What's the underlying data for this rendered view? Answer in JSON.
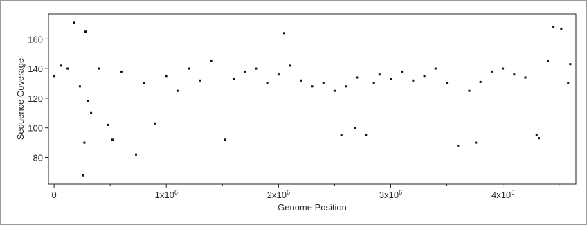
{
  "chart_data": {
    "type": "scatter",
    "title": "",
    "xlabel": "Genome Position",
    "ylabel": "Sequence Coverage",
    "xlim": [
      -50000,
      4650000
    ],
    "ylim": [
      62,
      177
    ],
    "grid": false,
    "x_ticks": [
      {
        "value": 0,
        "mantissa": "0",
        "exp": ""
      },
      {
        "value": 1000000,
        "mantissa": "1x10",
        "exp": "6"
      },
      {
        "value": 2000000,
        "mantissa": "2x10",
        "exp": "6"
      },
      {
        "value": 3000000,
        "mantissa": "3x10",
        "exp": "6"
      },
      {
        "value": 4000000,
        "mantissa": "4x10",
        "exp": "6"
      }
    ],
    "y_ticks": [
      80,
      100,
      120,
      140,
      160
    ],
    "marker_color": "#111111",
    "series": [
      {
        "points": [
          [
            0,
            135
          ],
          [
            60000,
            142
          ],
          [
            120000,
            140
          ],
          [
            180000,
            171
          ],
          [
            230000,
            128
          ],
          [
            260000,
            68
          ],
          [
            270000,
            90
          ],
          [
            280000,
            165
          ],
          [
            300000,
            118
          ],
          [
            330000,
            110
          ],
          [
            400000,
            140
          ],
          [
            480000,
            102
          ],
          [
            520000,
            92
          ],
          [
            600000,
            138
          ],
          [
            730000,
            82
          ],
          [
            800000,
            130
          ],
          [
            900000,
            103
          ],
          [
            1000000,
            135
          ],
          [
            1100000,
            125
          ],
          [
            1200000,
            140
          ],
          [
            1300000,
            132
          ],
          [
            1400000,
            145
          ],
          [
            1520000,
            92
          ],
          [
            1600000,
            133
          ],
          [
            1700000,
            138
          ],
          [
            1800000,
            140
          ],
          [
            1900000,
            130
          ],
          [
            2000000,
            136
          ],
          [
            2050000,
            164
          ],
          [
            2100000,
            142
          ],
          [
            2200000,
            132
          ],
          [
            2300000,
            128
          ],
          [
            2400000,
            130
          ],
          [
            2500000,
            125
          ],
          [
            2560000,
            95
          ],
          [
            2600000,
            128
          ],
          [
            2680000,
            100
          ],
          [
            2700000,
            134
          ],
          [
            2780000,
            95
          ],
          [
            2850000,
            130
          ],
          [
            2900000,
            136
          ],
          [
            3000000,
            133
          ],
          [
            3100000,
            138
          ],
          [
            3200000,
            132
          ],
          [
            3300000,
            135
          ],
          [
            3400000,
            140
          ],
          [
            3500000,
            130
          ],
          [
            3600000,
            88
          ],
          [
            3700000,
            125
          ],
          [
            3760000,
            90
          ],
          [
            3800000,
            131
          ],
          [
            3900000,
            138
          ],
          [
            4000000,
            140
          ],
          [
            4100000,
            136
          ],
          [
            4200000,
            134
          ],
          [
            4300000,
            95
          ],
          [
            4320000,
            93
          ],
          [
            4400000,
            145
          ],
          [
            4450000,
            168
          ],
          [
            4520000,
            167
          ],
          [
            4580000,
            130
          ],
          [
            4600000,
            143
          ]
        ]
      }
    ]
  }
}
